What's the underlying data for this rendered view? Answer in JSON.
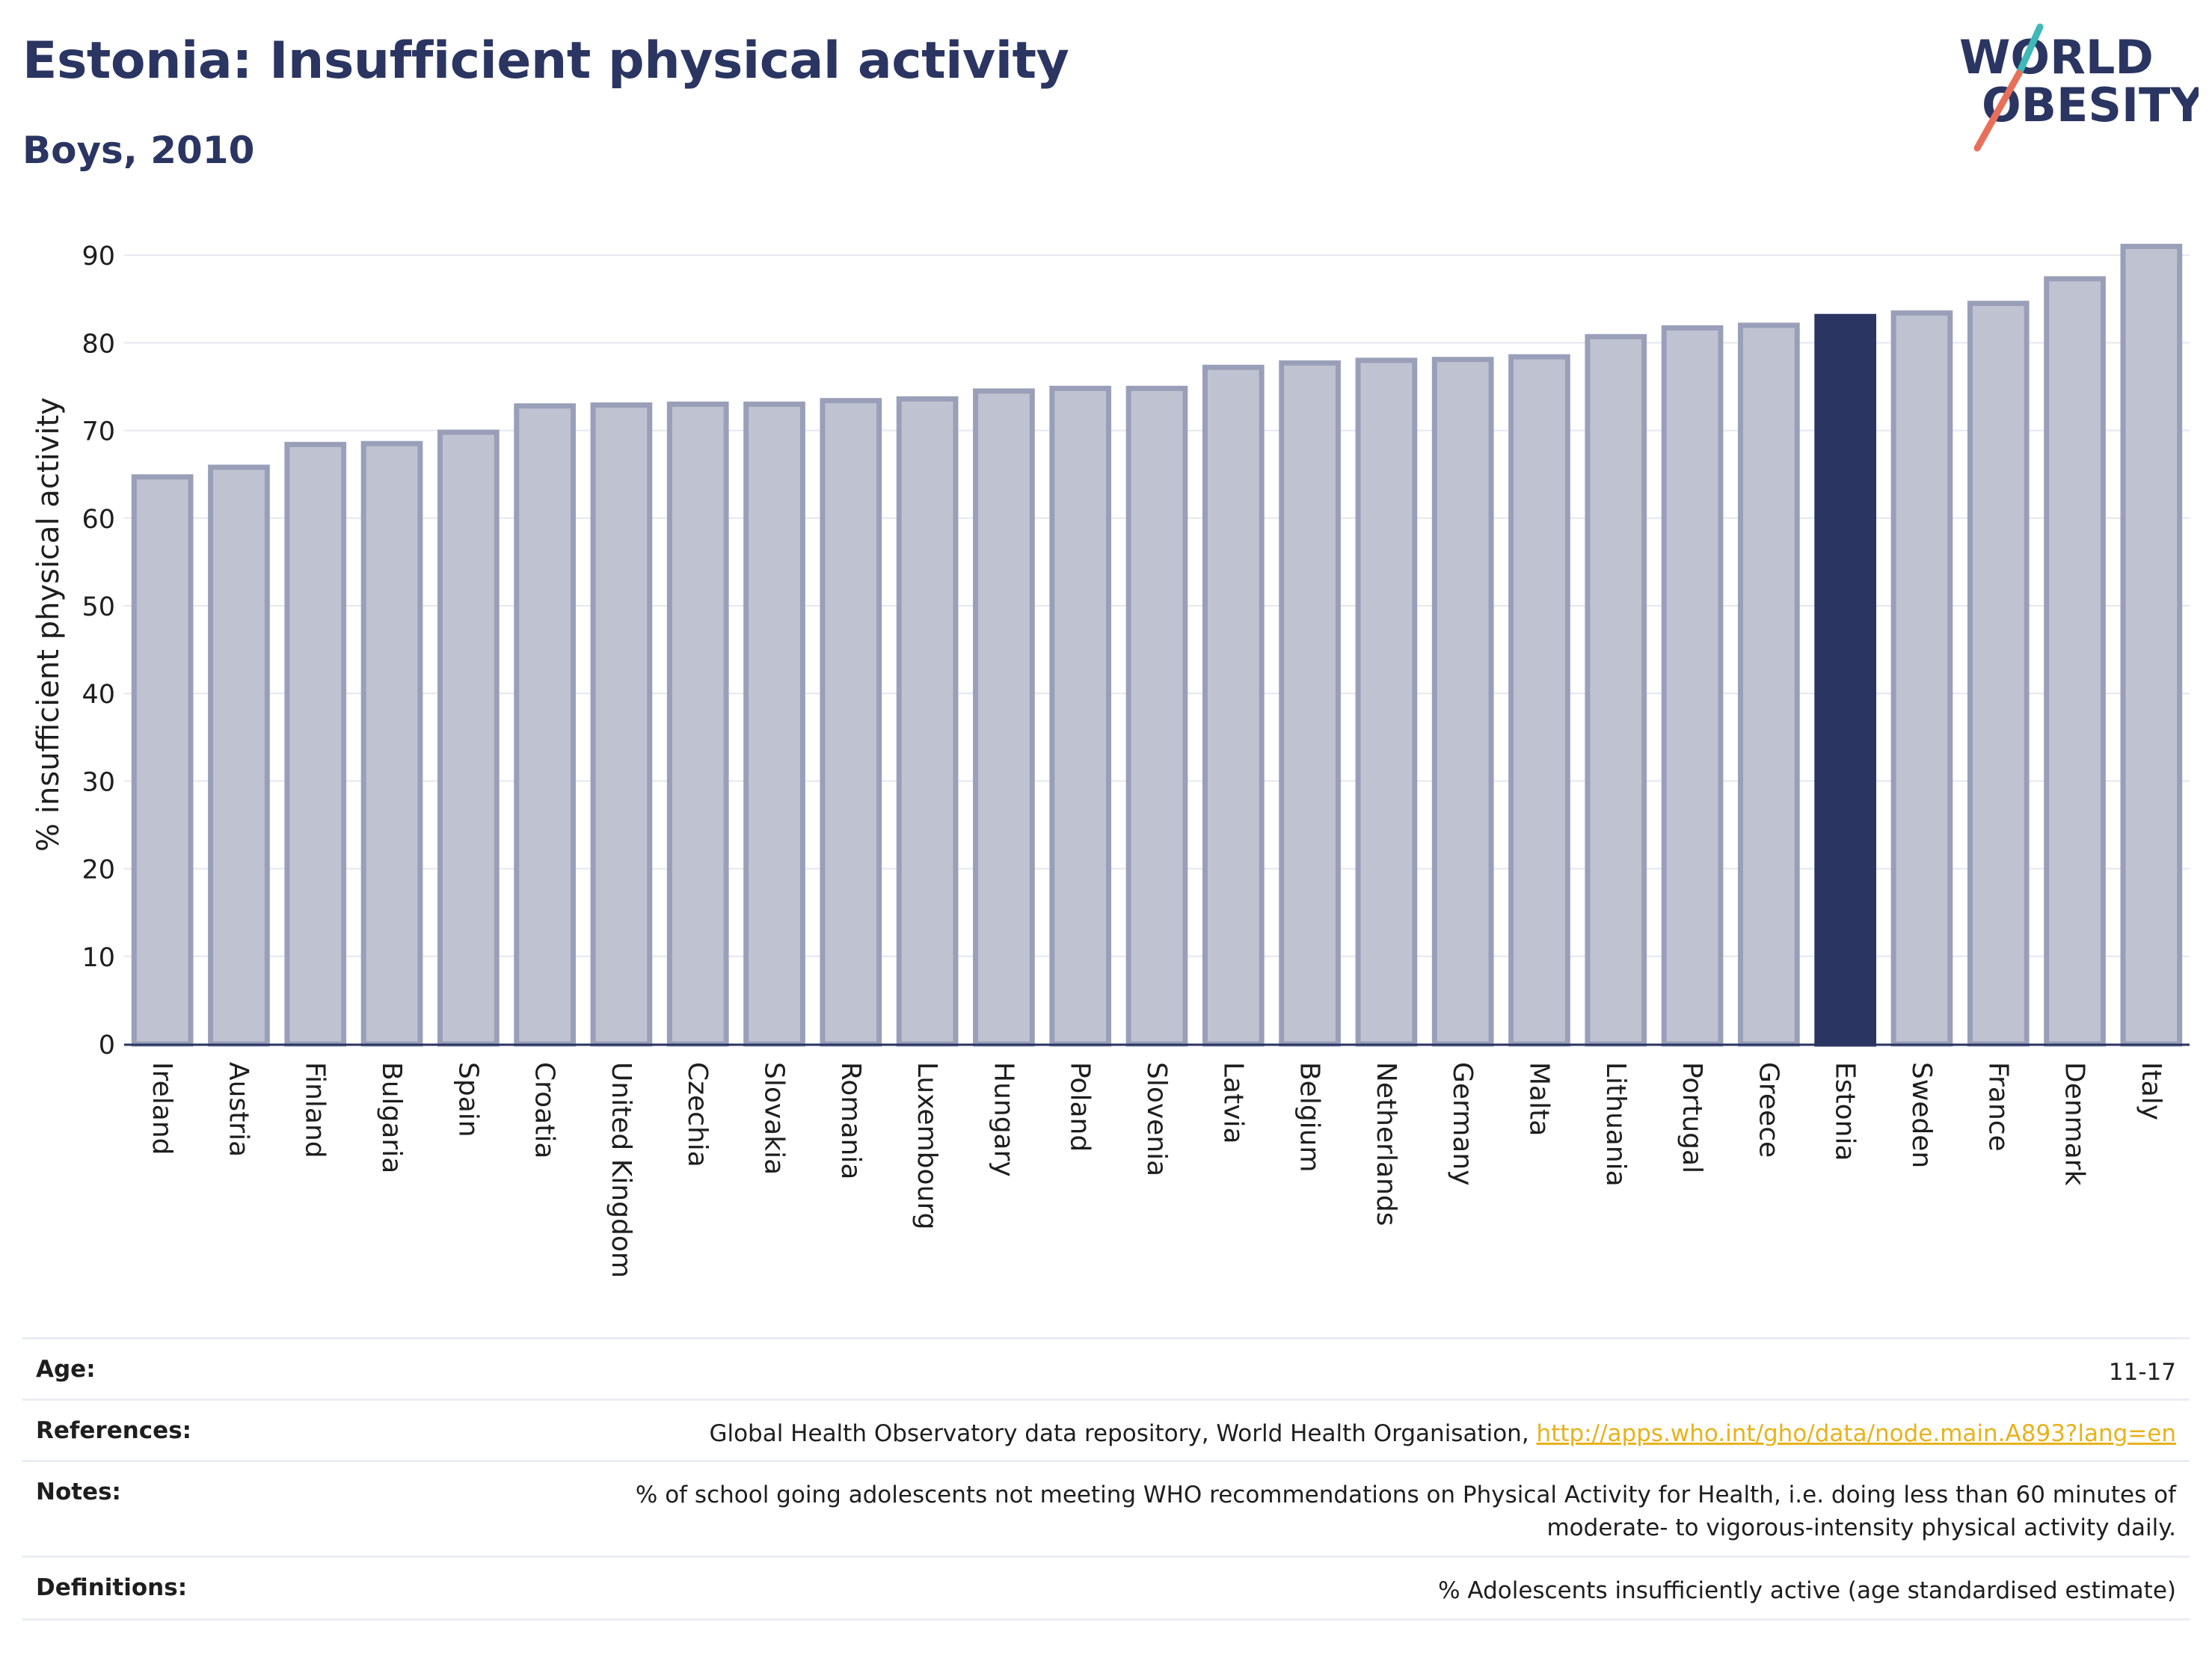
{
  "header": {
    "title": "Estonia: Insufficient physical activity",
    "subtitle": "Boys, 2010"
  },
  "logo": {
    "line1": "WORLD",
    "line2": "OBESITY",
    "colors": {
      "text": "#2b3562",
      "slash_top": "#3fb8b8",
      "slash_bottom": "#e8705a"
    }
  },
  "chart_data": {
    "type": "bar",
    "title": "Estonia: Insufficient physical activity",
    "subtitle": "Boys, 2010",
    "xlabel": "",
    "ylabel": "% insufficient physical activity",
    "ylim": [
      0,
      93
    ],
    "yticks": [
      0,
      10,
      20,
      30,
      40,
      50,
      60,
      70,
      80,
      90
    ],
    "grid": true,
    "legend": "none",
    "highlight": "Estonia",
    "colors": {
      "bar": "#bfc3d1",
      "bar_edge": "#9a9fb9",
      "highlight": "#2b3562",
      "grid": "#e4e7ee",
      "axis": "#2b3562"
    },
    "categories": [
      "Ireland",
      "Austria",
      "Finland",
      "Bulgaria",
      "Spain",
      "Croatia",
      "United Kingdom",
      "Czechia",
      "Slovakia",
      "Romania",
      "Luxembourg",
      "Hungary",
      "Poland",
      "Slovenia",
      "Latvia",
      "Belgium",
      "Netherlands",
      "Germany",
      "Malta",
      "Lithuania",
      "Portugal",
      "Greece",
      "Estonia",
      "Sweden",
      "France",
      "Denmark",
      "Italy"
    ],
    "values": [
      64.7,
      65.8,
      68.4,
      68.5,
      69.8,
      72.8,
      72.9,
      73.0,
      73.0,
      73.4,
      73.6,
      74.5,
      74.8,
      74.8,
      77.2,
      77.7,
      78.0,
      78.1,
      78.4,
      80.7,
      81.7,
      82.0,
      83.0,
      83.4,
      84.5,
      87.3,
      91.0
    ]
  },
  "meta": {
    "age": {
      "label": "Age:",
      "value": "11-17"
    },
    "references": {
      "label": "References:",
      "text": "Global Health Observatory data repository, World Health Organisation, ",
      "link": "http://apps.who.int/gho/data/node.main.A893?lang=en"
    },
    "notes": {
      "label": "Notes:",
      "line1": "% of school going adolescents not meeting WHO recommendations on Physical Activity for Health, i.e. doing less than 60 minutes of",
      "line2": "moderate- to vigorous-intensity physical activity daily."
    },
    "definitions": {
      "label": "Definitions:",
      "value": "% Adolescents insufficiently active (age standardised estimate)"
    }
  }
}
